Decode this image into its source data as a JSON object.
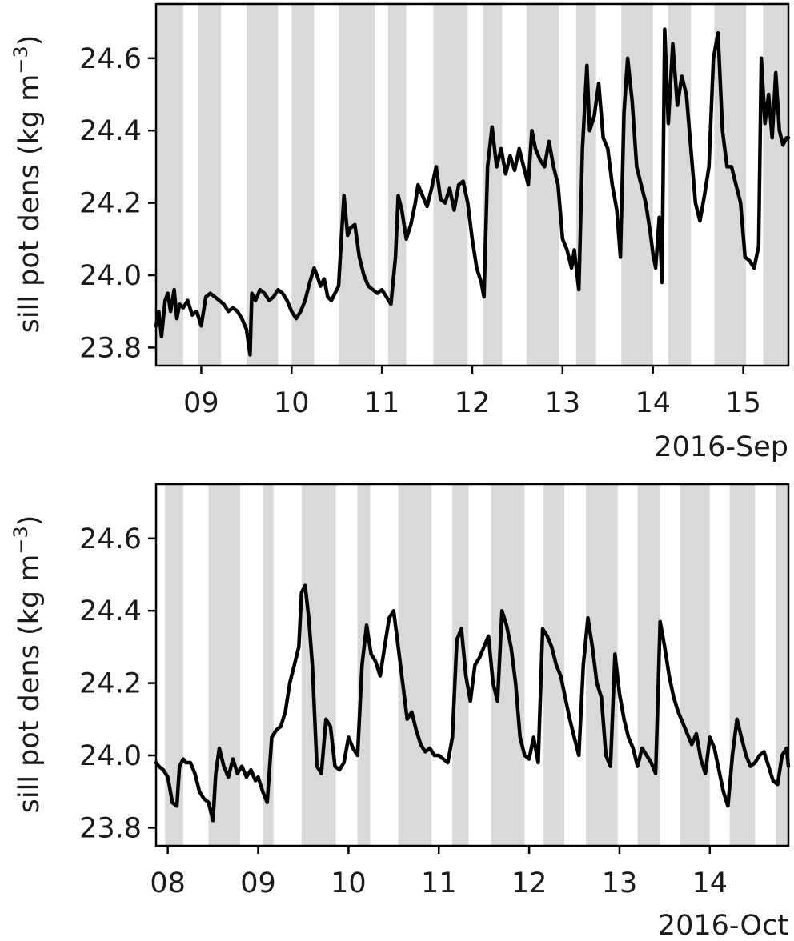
{
  "chart_data": [
    {
      "type": "line",
      "ylabel": "sill pot dens (kg m",
      "ylabel_sup": "−3",
      "ylabel_close": ")",
      "date_offset_label": "2016-Sep",
      "xlim": [
        8.5,
        15.5
      ],
      "ylim": [
        23.75,
        24.75
      ],
      "x_ticks": [
        9,
        10,
        11,
        12,
        13,
        14,
        15
      ],
      "x_tick_labels": [
        "09",
        "10",
        "11",
        "12",
        "13",
        "14",
        "15"
      ],
      "y_ticks": [
        23.8,
        24.0,
        24.2,
        24.4,
        24.6
      ],
      "y_tick_labels": [
        "23.8",
        "24.0",
        "24.2",
        "24.4",
        "24.6"
      ],
      "line_color": "#000000",
      "shade_color": "#d9d9d9",
      "shaded_intervals": [
        [
          8.5,
          8.8
        ],
        [
          8.97,
          9.22
        ],
        [
          9.5,
          9.85
        ],
        [
          10.0,
          10.25
        ],
        [
          10.52,
          10.92
        ],
        [
          11.07,
          11.27
        ],
        [
          11.57,
          11.95
        ],
        [
          12.12,
          12.33
        ],
        [
          12.6,
          12.96
        ],
        [
          13.15,
          13.37
        ],
        [
          13.65,
          14.0
        ],
        [
          14.17,
          14.42
        ],
        [
          14.68,
          15.03
        ],
        [
          15.22,
          15.5
        ]
      ],
      "series": [
        {
          "x": [
            8.5,
            8.53,
            8.56,
            8.6,
            8.63,
            8.66,
            8.7,
            8.73,
            8.76,
            8.8,
            8.85,
            8.9,
            8.95,
            9.0,
            9.05,
            9.1,
            9.15,
            9.2,
            9.25,
            9.3,
            9.35,
            9.4,
            9.45,
            9.5,
            9.54,
            9.56,
            9.6,
            9.65,
            9.7,
            9.75,
            9.8,
            9.85,
            9.9,
            9.95,
            10.0,
            10.05,
            10.1,
            10.15,
            10.2,
            10.25,
            10.28,
            10.32,
            10.36,
            10.4,
            10.44,
            10.48,
            10.52,
            10.55,
            10.58,
            10.62,
            10.65,
            10.7,
            10.75,
            10.8,
            10.85,
            10.9,
            10.95,
            11.0,
            11.05,
            11.1,
            11.15,
            11.18,
            11.22,
            11.27,
            11.32,
            11.37,
            11.4,
            11.45,
            11.5,
            11.55,
            11.6,
            11.65,
            11.7,
            11.75,
            11.8,
            11.85,
            11.9,
            11.95,
            12.0,
            12.05,
            12.1,
            12.13,
            12.17,
            12.22,
            12.27,
            12.32,
            12.37,
            12.42,
            12.47,
            12.52,
            12.57,
            12.62,
            12.66,
            12.7,
            12.75,
            12.8,
            12.85,
            12.9,
            12.95,
            13.0,
            13.05,
            13.1,
            13.13,
            13.18,
            13.22,
            13.27,
            13.3,
            13.35,
            13.4,
            13.45,
            13.5,
            13.55,
            13.6,
            13.64,
            13.68,
            13.72,
            13.77,
            13.82,
            13.87,
            13.92,
            13.97,
            14.0,
            14.03,
            14.07,
            14.1,
            14.13,
            14.17,
            14.22,
            14.27,
            14.32,
            14.37,
            14.42,
            14.47,
            14.52,
            14.57,
            14.62,
            14.67,
            14.72,
            14.77,
            14.82,
            14.87,
            14.92,
            14.97,
            15.02,
            15.07,
            15.12,
            15.17,
            15.2,
            15.24,
            15.28,
            15.32,
            15.36,
            15.4,
            15.44,
            15.48,
            15.5
          ],
          "y": [
            23.86,
            23.9,
            23.83,
            23.93,
            23.95,
            23.9,
            23.96,
            23.88,
            23.92,
            23.91,
            23.93,
            23.89,
            23.9,
            23.86,
            23.94,
            23.95,
            23.94,
            23.93,
            23.92,
            23.9,
            23.91,
            23.9,
            23.88,
            23.85,
            23.78,
            23.95,
            23.93,
            23.96,
            23.95,
            23.93,
            23.94,
            23.96,
            23.95,
            23.93,
            23.9,
            23.88,
            23.9,
            23.93,
            23.98,
            24.02,
            24.0,
            23.97,
            23.99,
            23.94,
            23.93,
            23.95,
            23.97,
            24.1,
            24.22,
            24.11,
            24.13,
            24.14,
            24.05,
            24.0,
            23.97,
            23.96,
            23.95,
            23.96,
            23.94,
            23.92,
            24.05,
            24.22,
            24.18,
            24.1,
            24.14,
            24.2,
            24.25,
            24.22,
            24.19,
            24.24,
            24.3,
            24.21,
            24.2,
            24.24,
            24.18,
            24.25,
            24.26,
            24.2,
            24.1,
            24.02,
            23.98,
            23.94,
            24.3,
            24.41,
            24.3,
            24.35,
            24.28,
            24.33,
            24.29,
            24.35,
            24.3,
            24.25,
            24.4,
            24.35,
            24.32,
            24.3,
            24.37,
            24.3,
            24.25,
            24.1,
            24.07,
            24.02,
            24.07,
            23.96,
            24.35,
            24.58,
            24.4,
            24.44,
            24.53,
            24.38,
            24.35,
            24.25,
            24.18,
            24.05,
            24.45,
            24.6,
            24.48,
            24.3,
            24.25,
            24.2,
            24.12,
            24.06,
            24.02,
            24.16,
            23.98,
            24.68,
            24.42,
            24.64,
            24.47,
            24.55,
            24.5,
            24.35,
            24.2,
            24.15,
            24.22,
            24.3,
            24.6,
            24.67,
            24.4,
            24.3,
            24.3,
            24.25,
            24.2,
            24.05,
            24.04,
            24.02,
            24.08,
            24.6,
            24.42,
            24.5,
            24.38,
            24.56,
            24.4,
            24.36,
            24.38,
            24.38
          ]
        }
      ]
    },
    {
      "type": "line",
      "ylabel": "sill pot dens (kg m",
      "ylabel_sup": "−3",
      "ylabel_close": ")",
      "date_offset_label": "2016-Oct",
      "xlim": [
        7.87,
        14.87
      ],
      "ylim": [
        23.75,
        24.75
      ],
      "x_ticks": [
        8,
        9,
        10,
        11,
        12,
        13,
        14
      ],
      "x_tick_labels": [
        "08",
        "09",
        "10",
        "11",
        "12",
        "13",
        "14"
      ],
      "y_ticks": [
        23.8,
        24.0,
        24.2,
        24.4,
        24.6
      ],
      "y_tick_labels": [
        "23.8",
        "24.0",
        "24.2",
        "24.4",
        "24.6"
      ],
      "line_color": "#000000",
      "shade_color": "#d9d9d9",
      "shaded_intervals": [
        [
          7.97,
          8.17
        ],
        [
          8.45,
          8.8
        ],
        [
          9.05,
          9.17
        ],
        [
          9.48,
          9.86
        ],
        [
          10.1,
          10.24
        ],
        [
          10.55,
          10.92
        ],
        [
          11.15,
          11.33
        ],
        [
          11.58,
          11.95
        ],
        [
          12.16,
          12.39
        ],
        [
          12.63,
          12.98
        ],
        [
          13.2,
          13.45
        ],
        [
          13.67,
          14.0
        ],
        [
          14.22,
          14.5
        ],
        [
          14.73,
          14.87
        ]
      ],
      "series": [
        {
          "x": [
            7.87,
            7.9,
            7.95,
            8.0,
            8.05,
            8.1,
            8.13,
            8.17,
            8.2,
            8.25,
            8.3,
            8.35,
            8.4,
            8.45,
            8.5,
            8.53,
            8.57,
            8.62,
            8.67,
            8.72,
            8.77,
            8.82,
            8.87,
            8.92,
            8.97,
            9.0,
            9.05,
            9.1,
            9.15,
            9.2,
            9.25,
            9.3,
            9.35,
            9.4,
            9.45,
            9.48,
            9.52,
            9.56,
            9.6,
            9.65,
            9.7,
            9.75,
            9.8,
            9.85,
            9.9,
            9.95,
            10.0,
            10.05,
            10.1,
            10.15,
            10.2,
            10.25,
            10.3,
            10.35,
            10.4,
            10.45,
            10.5,
            10.55,
            10.6,
            10.65,
            10.7,
            10.75,
            10.8,
            10.85,
            10.9,
            10.95,
            11.0,
            11.05,
            11.1,
            11.15,
            11.2,
            11.25,
            11.3,
            11.35,
            11.4,
            11.45,
            11.5,
            11.55,
            11.6,
            11.65,
            11.7,
            11.75,
            11.8,
            11.85,
            11.9,
            11.95,
            12.0,
            12.05,
            12.1,
            12.15,
            12.2,
            12.25,
            12.3,
            12.35,
            12.4,
            12.45,
            12.5,
            12.55,
            12.6,
            12.65,
            12.7,
            12.75,
            12.8,
            12.85,
            12.9,
            12.95,
            13.0,
            13.05,
            13.1,
            13.15,
            13.2,
            13.25,
            13.3,
            13.35,
            13.4,
            13.45,
            13.5,
            13.55,
            13.6,
            13.65,
            13.7,
            13.75,
            13.8,
            13.85,
            13.9,
            13.95,
            14.0,
            14.05,
            14.1,
            14.15,
            14.2,
            14.25,
            14.3,
            14.35,
            14.4,
            14.45,
            14.5,
            14.55,
            14.6,
            14.65,
            14.7,
            14.75,
            14.8,
            14.85,
            14.87
          ],
          "y": [
            23.98,
            23.97,
            23.96,
            23.94,
            23.87,
            23.86,
            23.97,
            23.99,
            23.98,
            23.98,
            23.95,
            23.9,
            23.88,
            23.87,
            23.82,
            23.95,
            24.02,
            23.97,
            23.94,
            23.99,
            23.95,
            23.97,
            23.94,
            23.96,
            23.93,
            23.94,
            23.9,
            23.87,
            24.05,
            24.07,
            24.08,
            24.12,
            24.2,
            24.25,
            24.3,
            24.45,
            24.47,
            24.38,
            24.25,
            23.97,
            23.95,
            24.1,
            24.08,
            23.97,
            23.96,
            23.98,
            24.05,
            24.02,
            24.0,
            24.25,
            24.36,
            24.28,
            24.26,
            24.22,
            24.3,
            24.38,
            24.4,
            24.3,
            24.2,
            24.1,
            24.12,
            24.07,
            24.03,
            24.01,
            24.02,
            24.0,
            24.0,
            23.99,
            23.98,
            24.05,
            24.32,
            24.35,
            24.22,
            24.15,
            24.25,
            24.27,
            24.3,
            24.33,
            24.2,
            24.15,
            24.4,
            24.36,
            24.3,
            24.2,
            24.05,
            24.0,
            23.99,
            24.05,
            23.98,
            24.35,
            24.33,
            24.3,
            24.25,
            24.22,
            24.16,
            24.1,
            24.05,
            24.0,
            24.25,
            24.38,
            24.3,
            24.2,
            24.16,
            24.0,
            23.97,
            24.28,
            24.17,
            24.1,
            24.05,
            24.02,
            23.97,
            24.02,
            24.0,
            23.98,
            23.95,
            24.37,
            24.3,
            24.22,
            24.16,
            24.12,
            24.09,
            24.06,
            24.03,
            24.06,
            23.99,
            23.95,
            24.05,
            24.02,
            23.96,
            23.9,
            23.86,
            24.0,
            24.1,
            24.05,
            24.0,
            23.97,
            23.98,
            24.0,
            24.01,
            23.97,
            23.93,
            23.92,
            24.0,
            24.02,
            23.97
          ]
        }
      ]
    }
  ]
}
